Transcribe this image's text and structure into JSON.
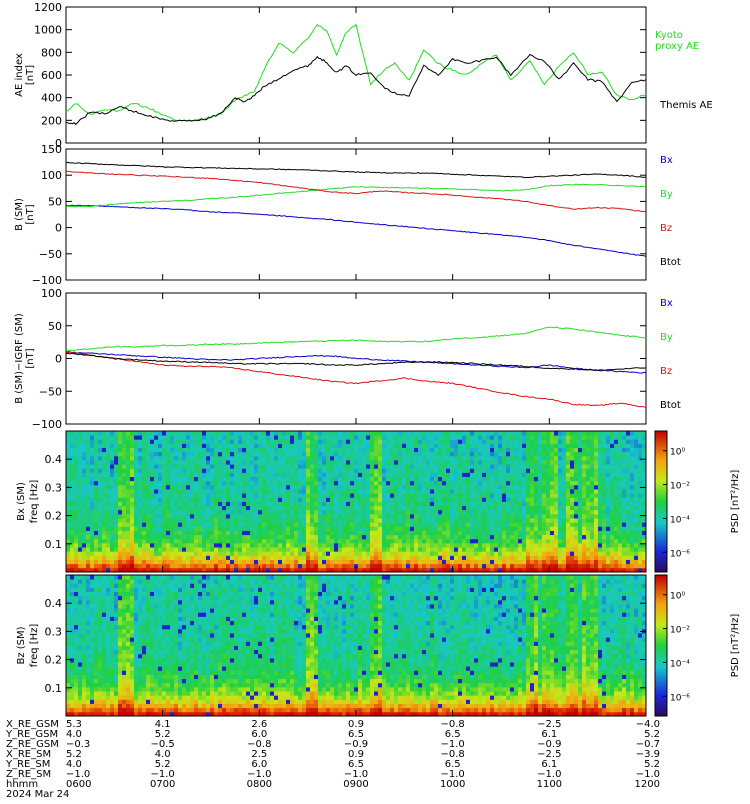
{
  "colors": {
    "black": "#000000",
    "green": "#22dd22",
    "red": "#dd1111",
    "blue": "#0000cc"
  },
  "time_axis": {
    "ticks": [
      "0600",
      "0700",
      "0800",
      "0900",
      "1000",
      "1100",
      "1200"
    ],
    "date": "2024 Mar 24",
    "label": "hhmm"
  },
  "ephemeris": {
    "rows": [
      {
        "label": "X_RE_GSM",
        "values": [
          "5.3",
          "4.1",
          "2.6",
          "0.9",
          "−0.8",
          "−2.5",
          "−4.0"
        ]
      },
      {
        "label": "Y_RE_GSM",
        "values": [
          "4.0",
          "5.2",
          "6.0",
          "6.5",
          "6.5",
          "6.1",
          "5.2"
        ]
      },
      {
        "label": "Z_RE_GSM",
        "values": [
          "−0.3",
          "−0.5",
          "−0.8",
          "−0.9",
          "−1.0",
          "−0.9",
          "−0.7"
        ]
      },
      {
        "label": "X_RE_SM",
        "values": [
          "5.2",
          "4.0",
          "2.5",
          "0.9",
          "−0.8",
          "−2.5",
          "−3.9"
        ]
      },
      {
        "label": "Y_RE_SM",
        "values": [
          "4.0",
          "5.2",
          "6.0",
          "6.5",
          "6.5",
          "6.1",
          "5.2"
        ]
      },
      {
        "label": "Z_RE_SM",
        "values": [
          "−1.0",
          "−1.0",
          "−1.0",
          "−1.0",
          "−1.0",
          "−1.0",
          "−1.0"
        ]
      }
    ]
  },
  "chart_data": [
    {
      "type": "line",
      "ylabel_lines": [
        "AE index",
        "[nT]"
      ],
      "ylim": [
        0,
        1200
      ],
      "yticks": [
        "0",
        "200",
        "400",
        "600",
        "800",
        "1000",
        "1200"
      ],
      "x": [
        6.0,
        6.1,
        6.25,
        6.4,
        6.55,
        6.7,
        6.85,
        7.0,
        7.15,
        7.3,
        7.45,
        7.6,
        7.75,
        7.85,
        7.95,
        8.05,
        8.2,
        8.35,
        8.5,
        8.6,
        8.7,
        8.8,
        8.9,
        9.0,
        9.15,
        9.3,
        9.4,
        9.55,
        9.7,
        9.85,
        10.0,
        10.15,
        10.3,
        10.45,
        10.6,
        10.8,
        10.95,
        11.1,
        11.25,
        11.4,
        11.55,
        11.7,
        11.85,
        12.0
      ],
      "series": [
        {
          "name": "Kyoto proxy AE",
          "name_lines": [
            "Kyoto",
            "proxy AE"
          ],
          "color_key": "green",
          "values": [
            270,
            350,
            250,
            300,
            280,
            350,
            310,
            250,
            200,
            190,
            220,
            250,
            380,
            420,
            450,
            650,
            880,
            800,
            920,
            1050,
            980,
            780,
            980,
            1040,
            520,
            650,
            700,
            550,
            820,
            700,
            640,
            600,
            700,
            780,
            560,
            720,
            520,
            680,
            800,
            610,
            620,
            420,
            380,
            430
          ]
        },
        {
          "name": "Themis AE",
          "name_lines": [
            "Themis AE"
          ],
          "color_key": "black",
          "values": [
            180,
            170,
            270,
            260,
            320,
            280,
            240,
            210,
            190,
            200,
            210,
            260,
            400,
            360,
            420,
            500,
            570,
            640,
            680,
            760,
            710,
            620,
            680,
            600,
            620,
            490,
            440,
            420,
            680,
            600,
            740,
            700,
            730,
            760,
            600,
            780,
            720,
            560,
            700,
            560,
            540,
            360,
            530,
            560
          ]
        }
      ]
    },
    {
      "type": "line",
      "ylabel_lines": [
        "B (SM)",
        "[nT]"
      ],
      "ylim": [
        -100,
        150
      ],
      "yticks": [
        "−100",
        "−50",
        "0",
        "50",
        "100",
        "150"
      ],
      "x": [
        6.0,
        6.25,
        6.5,
        6.75,
        7.0,
        7.25,
        7.5,
        7.75,
        8.0,
        8.25,
        8.5,
        8.75,
        9.0,
        9.25,
        9.5,
        9.75,
        10.0,
        10.25,
        10.5,
        10.75,
        11.0,
        11.25,
        11.5,
        11.75,
        12.0
      ],
      "series": [
        {
          "name": "Bx",
          "color_key": "blue",
          "values": [
            42,
            42,
            40,
            38,
            36,
            34,
            30,
            28,
            25,
            22,
            18,
            15,
            10,
            6,
            2,
            -2,
            -6,
            -10,
            -14,
            -18,
            -25,
            -34,
            -40,
            -48,
            -55
          ]
        },
        {
          "name": "By",
          "color_key": "green",
          "values": [
            40,
            40,
            45,
            48,
            50,
            52,
            55,
            58,
            62,
            66,
            70,
            74,
            78,
            77,
            76,
            75,
            74,
            72,
            70,
            72,
            80,
            82,
            82,
            80,
            78
          ]
        },
        {
          "name": "Bz",
          "color_key": "red",
          "values": [
            108,
            104,
            102,
            100,
            98,
            96,
            94,
            90,
            86,
            80,
            74,
            68,
            65,
            70,
            67,
            65,
            62,
            58,
            55,
            50,
            42,
            35,
            38,
            36,
            30
          ]
        },
        {
          "name": "Btot",
          "color_key": "black",
          "values": [
            124,
            122,
            120,
            118,
            116,
            115,
            114,
            113,
            112,
            111,
            110,
            108,
            106,
            105,
            104,
            104,
            102,
            100,
            98,
            96,
            98,
            100,
            102,
            100,
            96
          ]
        }
      ]
    },
    {
      "type": "line",
      "ylabel_lines": [
        "B (SM)−IGRF (SM)",
        "[nT]"
      ],
      "ylim": [
        -100,
        100
      ],
      "yticks": [
        "−100",
        "−50",
        "0",
        "50",
        "100"
      ],
      "x": [
        6.0,
        6.25,
        6.5,
        6.75,
        7.0,
        7.25,
        7.5,
        7.75,
        8.0,
        8.25,
        8.5,
        8.75,
        9.0,
        9.25,
        9.5,
        9.75,
        10.0,
        10.25,
        10.5,
        10.75,
        11.0,
        11.25,
        11.5,
        11.75,
        12.0
      ],
      "series": [
        {
          "name": "Bx",
          "color_key": "blue",
          "values": [
            10,
            8,
            6,
            4,
            2,
            0,
            -2,
            -2,
            0,
            2,
            4,
            4,
            0,
            -2,
            -4,
            -6,
            -8,
            -10,
            -12,
            -14,
            -10,
            -15,
            -18,
            -20,
            -22
          ]
        },
        {
          "name": "By",
          "color_key": "green",
          "values": [
            12,
            15,
            18,
            18,
            20,
            20,
            22,
            22,
            24,
            25,
            26,
            27,
            28,
            26,
            26,
            26,
            30,
            32,
            35,
            38,
            48,
            45,
            40,
            35,
            32
          ]
        },
        {
          "name": "Bz",
          "color_key": "red",
          "values": [
            10,
            5,
            0,
            -5,
            -10,
            -12,
            -12,
            -15,
            -20,
            -25,
            -30,
            -35,
            -38,
            -34,
            -30,
            -35,
            -38,
            -45,
            -52,
            -58,
            -62,
            -70,
            -72,
            -68,
            -75
          ]
        },
        {
          "name": "Btot",
          "color_key": "black",
          "values": [
            8,
            5,
            0,
            -2,
            -4,
            -5,
            -6,
            -8,
            -8,
            -8,
            -8,
            -10,
            -10,
            -8,
            -6,
            -5,
            -6,
            -8,
            -10,
            -12,
            -15,
            -16,
            -18,
            -16,
            -14
          ]
        }
      ]
    },
    {
      "type": "heatmap",
      "component": "Bx",
      "ylabel_lines": [
        "Bx (SM)",
        "freq [Hz]"
      ],
      "ylim": [
        0,
        0.5
      ],
      "yticks": [
        "0.1",
        "0.2",
        "0.3",
        "0.4"
      ],
      "colorbar_label": "PSD [nT²/Hz]",
      "colorbar_ticks": [
        "10⁰",
        "10⁻²",
        "10⁻⁴",
        "10⁻⁶"
      ]
    },
    {
      "type": "heatmap",
      "component": "Bz",
      "ylabel_lines": [
        "Bz (SM)",
        "freq [Hz]"
      ],
      "ylim": [
        0,
        0.5
      ],
      "yticks": [
        "0.1",
        "0.2",
        "0.3",
        "0.4"
      ],
      "colorbar_label": "PSD [nT²/Hz]",
      "colorbar_ticks": [
        "10⁰",
        "10⁻²",
        "10⁻⁴",
        "10⁻⁶"
      ]
    }
  ]
}
